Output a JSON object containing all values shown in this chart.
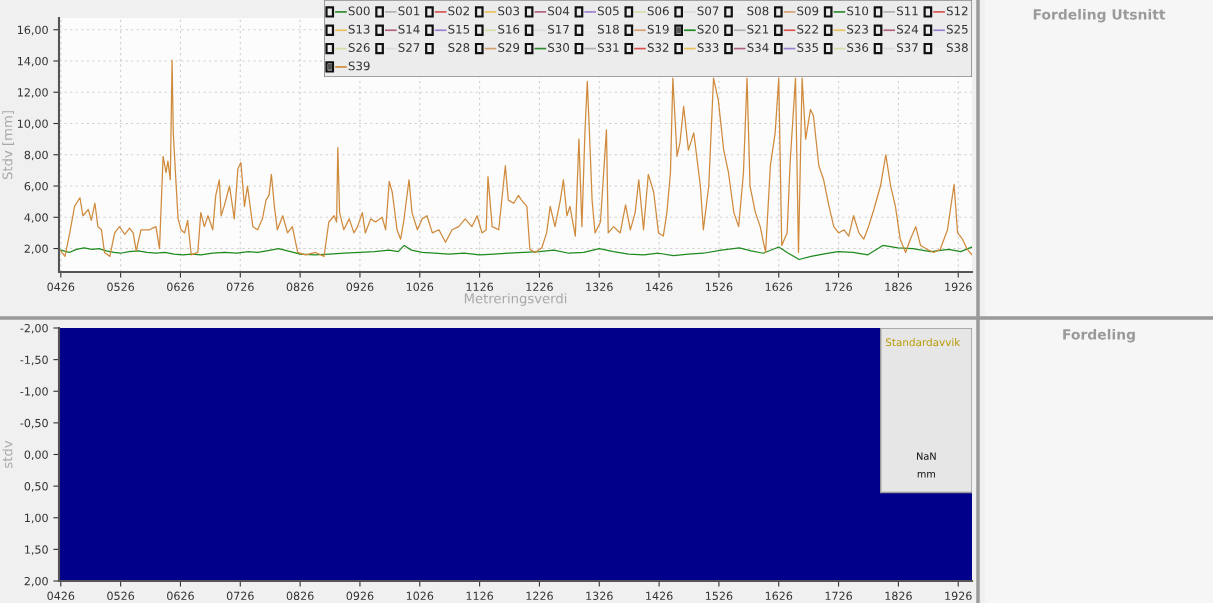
{
  "chart_data": [
    {
      "type": "line",
      "xlabel": "Metreringsverdi",
      "ylabel": "Stdv [mm]",
      "xlim": [
        423,
        1949
      ],
      "ylim": [
        0.5,
        16.75
      ],
      "xticks": [
        {
          "value": 426,
          "label": "0426"
        },
        {
          "value": 526,
          "label": "0526"
        },
        {
          "value": 626,
          "label": "0626"
        },
        {
          "value": 726,
          "label": "0726"
        },
        {
          "value": 826,
          "label": "0826"
        },
        {
          "value": 926,
          "label": "0926"
        },
        {
          "value": 1026,
          "label": "1026"
        },
        {
          "value": 1126,
          "label": "1126"
        },
        {
          "value": 1226,
          "label": "1226"
        },
        {
          "value": 1326,
          "label": "1326"
        },
        {
          "value": 1426,
          "label": "1426"
        },
        {
          "value": 1526,
          "label": "1526"
        },
        {
          "value": 1626,
          "label": "1626"
        },
        {
          "value": 1726,
          "label": "1726"
        },
        {
          "value": 1826,
          "label": "1826"
        },
        {
          "value": 1926,
          "label": "1926"
        }
      ],
      "yticks": [
        {
          "value": 2,
          "label": "2,00"
        },
        {
          "value": 4,
          "label": "4,00"
        },
        {
          "value": 6,
          "label": "6,00"
        },
        {
          "value": 8,
          "label": "8,00"
        },
        {
          "value": 10,
          "label": "10,00"
        },
        {
          "value": 12,
          "label": "12,00"
        },
        {
          "value": 14,
          "label": "14,00"
        },
        {
          "value": 16,
          "label": "16,00"
        }
      ],
      "grid": true,
      "legend": "top right",
      "marker": "none",
      "line_style": "solid",
      "series": [
        {
          "name": "S00",
          "color": "#2e8b2e"
        },
        {
          "name": "S01",
          "color": "#b0b0b0"
        },
        {
          "name": "S02",
          "color": "#d9534f"
        },
        {
          "name": "S03",
          "color": "#e8c25a"
        },
        {
          "name": "S04",
          "color": "#b06080"
        },
        {
          "name": "S05",
          "color": "#9a7fd0"
        },
        {
          "name": "S06",
          "color": "#d8dca8"
        },
        {
          "name": "S07",
          "color": "#dcdcdc"
        },
        {
          "name": "S08",
          "color": "#f2f2f2"
        },
        {
          "name": "S09",
          "color": "#d4a070"
        },
        {
          "name": "S10",
          "color": "#2e8b2e"
        },
        {
          "name": "S11",
          "color": "#b0b0b0"
        },
        {
          "name": "S12",
          "color": "#d9534f"
        },
        {
          "name": "S13",
          "color": "#e8c25a"
        },
        {
          "name": "S14",
          "color": "#b06080"
        },
        {
          "name": "S15",
          "color": "#9a7fd0"
        },
        {
          "name": "S16",
          "color": "#d8dca8"
        },
        {
          "name": "S17",
          "color": "#dcdcdc"
        },
        {
          "name": "S18",
          "color": "#f2f2f2"
        },
        {
          "name": "S19",
          "color": "#d4a070"
        },
        {
          "name": "S20",
          "color": "#1e8a1e",
          "x": [
            426,
            440,
            452,
            465,
            478,
            490,
            502,
            515,
            526,
            540,
            555,
            570,
            585,
            600,
            615,
            630,
            645,
            660,
            680,
            700,
            720,
            740,
            755,
            770,
            790,
            810,
            826,
            850,
            875,
            900,
            925,
            950,
            975,
            990,
            1000,
            1012,
            1030,
            1050,
            1075,
            1100,
            1126,
            1150,
            1175,
            1200,
            1226,
            1250,
            1275,
            1300,
            1326,
            1350,
            1375,
            1400,
            1425,
            1450,
            1475,
            1500,
            1530,
            1560,
            1580,
            1600,
            1626,
            1640,
            1660,
            1680,
            1700,
            1725,
            1750,
            1775,
            1800,
            1825,
            1850,
            1880,
            1910,
            1930,
            1949
          ],
          "values": [
            1.9,
            1.75,
            1.95,
            2.05,
            1.95,
            2.0,
            1.85,
            1.75,
            1.7,
            1.8,
            1.85,
            1.75,
            1.7,
            1.75,
            1.65,
            1.6,
            1.65,
            1.6,
            1.7,
            1.75,
            1.7,
            1.8,
            1.75,
            1.85,
            2.0,
            1.8,
            1.65,
            1.6,
            1.65,
            1.7,
            1.75,
            1.8,
            1.9,
            1.8,
            2.2,
            1.9,
            1.75,
            1.7,
            1.65,
            1.7,
            1.6,
            1.65,
            1.7,
            1.75,
            1.8,
            1.9,
            1.7,
            1.75,
            2.0,
            1.8,
            1.65,
            1.6,
            1.7,
            1.55,
            1.65,
            1.7,
            1.9,
            2.05,
            1.85,
            1.7,
            2.1,
            1.75,
            1.3,
            1.5,
            1.65,
            1.8,
            1.75,
            1.6,
            2.2,
            2.05,
            2.0,
            1.8,
            1.95,
            1.8,
            2.1
          ]
        },
        {
          "name": "S21",
          "color": "#b0b0b0"
        },
        {
          "name": "S22",
          "color": "#d9534f"
        },
        {
          "name": "S23",
          "color": "#e8c25a"
        },
        {
          "name": "S24",
          "color": "#b06080"
        },
        {
          "name": "S25",
          "color": "#9a7fd0"
        },
        {
          "name": "S26",
          "color": "#d8dca8"
        },
        {
          "name": "S27",
          "color": "#dcdcdc"
        },
        {
          "name": "S28",
          "color": "#f2f2f2"
        },
        {
          "name": "S29",
          "color": "#d4a070"
        },
        {
          "name": "S30",
          "color": "#2e8b2e"
        },
        {
          "name": "S31",
          "color": "#b0b0b0"
        },
        {
          "name": "S32",
          "color": "#d9534f"
        },
        {
          "name": "S33",
          "color": "#e8c25a"
        },
        {
          "name": "S34",
          "color": "#b06080"
        },
        {
          "name": "S35",
          "color": "#9a7fd0"
        },
        {
          "name": "S36",
          "color": "#d8dca8"
        },
        {
          "name": "S37",
          "color": "#dcdcdc"
        },
        {
          "name": "S38",
          "color": "#f2f2f2"
        },
        {
          "name": "S39",
          "color": "#d08a3c",
          "x": [
            426,
            433,
            441,
            449,
            458,
            463,
            472,
            477,
            483,
            488,
            494,
            499,
            508,
            516,
            524,
            533,
            541,
            547,
            552,
            560,
            574,
            585,
            591,
            597,
            602,
            605,
            609,
            612,
            614,
            618,
            622,
            627,
            633,
            638,
            644,
            655,
            660,
            666,
            672,
            680,
            685,
            691,
            694,
            699,
            708,
            716,
            722,
            727,
            733,
            738,
            747,
            755,
            763,
            769,
            774,
            778,
            783,
            788,
            797,
            805,
            813,
            822,
            835,
            852,
            866,
            874,
            883,
            887,
            889,
            892,
            899,
            908,
            916,
            922,
            930,
            935,
            944,
            952,
            963,
            969,
            975,
            980,
            988,
            994,
            999,
            1008,
            1013,
            1022,
            1030,
            1038,
            1047,
            1058,
            1069,
            1080,
            1091,
            1102,
            1113,
            1122,
            1130,
            1137,
            1140,
            1147,
            1158,
            1169,
            1174,
            1183,
            1191,
            1196,
            1205,
            1210,
            1219,
            1230,
            1238,
            1244,
            1252,
            1261,
            1266,
            1272,
            1277,
            1286,
            1292,
            1297,
            1302,
            1306,
            1310,
            1314,
            1319,
            1328,
            1338,
            1341,
            1350,
            1361,
            1370,
            1378,
            1386,
            1392,
            1400,
            1408,
            1417,
            1425,
            1433,
            1439,
            1445,
            1449,
            1456,
            1461,
            1467,
            1475,
            1484,
            1495,
            1500,
            1509,
            1517,
            1525,
            1534,
            1542,
            1551,
            1559,
            1567,
            1573,
            1578,
            1587,
            1595,
            1604,
            1612,
            1620,
            1626,
            1631,
            1640,
            1645,
            1654,
            1659,
            1665,
            1671,
            1679,
            1684,
            1693,
            1701,
            1710,
            1718,
            1726,
            1735,
            1743,
            1751,
            1760,
            1768,
            1776,
            1785,
            1796,
            1805,
            1813,
            1821,
            1829,
            1838,
            1846,
            1855,
            1863,
            1874,
            1885,
            1896,
            1908,
            1919,
            1925,
            1933,
            1941,
            1949
          ],
          "values": [
            1.85,
            1.5,
            3.0,
            4.7,
            5.25,
            4.1,
            4.5,
            3.8,
            4.9,
            3.4,
            3.2,
            1.75,
            1.5,
            3.0,
            3.4,
            2.9,
            3.3,
            3.0,
            1.85,
            3.2,
            3.2,
            3.4,
            2.0,
            7.9,
            6.85,
            7.6,
            6.4,
            14.05,
            9.4,
            6.6,
            3.9,
            3.2,
            3.0,
            3.8,
            1.6,
            1.75,
            4.3,
            3.4,
            4.1,
            3.2,
            5.4,
            6.4,
            4.1,
            4.7,
            6.0,
            3.9,
            7.1,
            7.5,
            4.7,
            6.0,
            3.4,
            3.2,
            3.9,
            5.1,
            5.4,
            6.75,
            4.7,
            3.2,
            4.1,
            3.0,
            3.4,
            1.75,
            1.6,
            1.75,
            1.5,
            3.7,
            4.1,
            3.7,
            8.45,
            4.3,
            3.2,
            3.9,
            3.0,
            3.4,
            4.3,
            3.0,
            3.9,
            3.7,
            4.0,
            3.2,
            6.3,
            5.6,
            3.2,
            2.6,
            3.7,
            6.4,
            4.3,
            3.2,
            3.9,
            4.1,
            3.0,
            3.2,
            2.4,
            3.2,
            3.4,
            3.9,
            3.4,
            4.1,
            3.0,
            3.2,
            6.6,
            3.4,
            3.2,
            7.3,
            5.1,
            4.9,
            5.4,
            5.1,
            4.7,
            1.95,
            1.75,
            2.05,
            3.0,
            4.7,
            3.4,
            5.1,
            6.4,
            4.1,
            4.7,
            2.8,
            9.0,
            3.4,
            9.4,
            12.7,
            9.0,
            5.1,
            3.0,
            3.7,
            9.6,
            3.0,
            3.4,
            3.0,
            4.8,
            3.2,
            4.3,
            6.4,
            3.2,
            6.75,
            5.6,
            3.0,
            2.8,
            4.3,
            6.85,
            12.9,
            7.9,
            8.8,
            11.1,
            8.3,
            9.4,
            6.0,
            3.2,
            6.0,
            12.9,
            11.5,
            8.3,
            6.85,
            4.3,
            3.4,
            6.85,
            12.9,
            6.0,
            4.3,
            3.4,
            1.75,
            7.3,
            9.4,
            12.9,
            2.2,
            3.0,
            7.5,
            12.9,
            1.75,
            12.9,
            9.0,
            10.9,
            10.5,
            7.3,
            6.4,
            4.7,
            3.4,
            3.0,
            3.2,
            2.8,
            4.1,
            3.0,
            2.6,
            3.4,
            4.5,
            6.0,
            8.0,
            6.0,
            4.7,
            2.6,
            1.75,
            2.6,
            3.4,
            2.2,
            1.95,
            1.75,
            1.95,
            3.2,
            6.1,
            3.0,
            2.6,
            1.95,
            1.6
          ]
        }
      ]
    },
    {
      "type": "other",
      "title": "Fordeling Utsnitt"
    },
    {
      "type": "line",
      "ylabel": "stdv",
      "xlim": [
        423,
        1949
      ],
      "ylim": [
        2,
        -2
      ],
      "xticks": [
        {
          "value": 426,
          "label": "0426"
        },
        {
          "value": 526,
          "label": "0526"
        },
        {
          "value": 626,
          "label": "0626"
        },
        {
          "value": 726,
          "label": "0726"
        },
        {
          "value": 826,
          "label": "0826"
        },
        {
          "value": 926,
          "label": "0926"
        },
        {
          "value": 1026,
          "label": "1026"
        },
        {
          "value": 1126,
          "label": "1126"
        },
        {
          "value": 1226,
          "label": "1226"
        },
        {
          "value": 1326,
          "label": "1326"
        },
        {
          "value": 1426,
          "label": "1426"
        },
        {
          "value": 1526,
          "label": "1526"
        },
        {
          "value": 1626,
          "label": "1626"
        },
        {
          "value": 1726,
          "label": "1726"
        },
        {
          "value": 1826,
          "label": "1826"
        },
        {
          "value": 1926,
          "label": "1926"
        }
      ],
      "yticks": [
        {
          "value": -2,
          "label": "-2,00"
        },
        {
          "value": -1.5,
          "label": "-1,50"
        },
        {
          "value": -1,
          "label": "-1,00"
        },
        {
          "value": -0.5,
          "label": "-0,50"
        },
        {
          "value": 0,
          "label": "0,00"
        },
        {
          "value": 0.5,
          "label": "0,50"
        },
        {
          "value": 1,
          "label": "1,00"
        },
        {
          "value": 1.5,
          "label": "1,50"
        },
        {
          "value": 2,
          "label": "2,00"
        }
      ],
      "bands": [
        {
          "axis": "y",
          "from": -2,
          "to": 2,
          "color": "#00008b"
        }
      ],
      "annotations": [
        "Standardavvik",
        "NaN",
        "mm"
      ]
    },
    {
      "type": "other",
      "title": "Fordeling"
    }
  ]
}
